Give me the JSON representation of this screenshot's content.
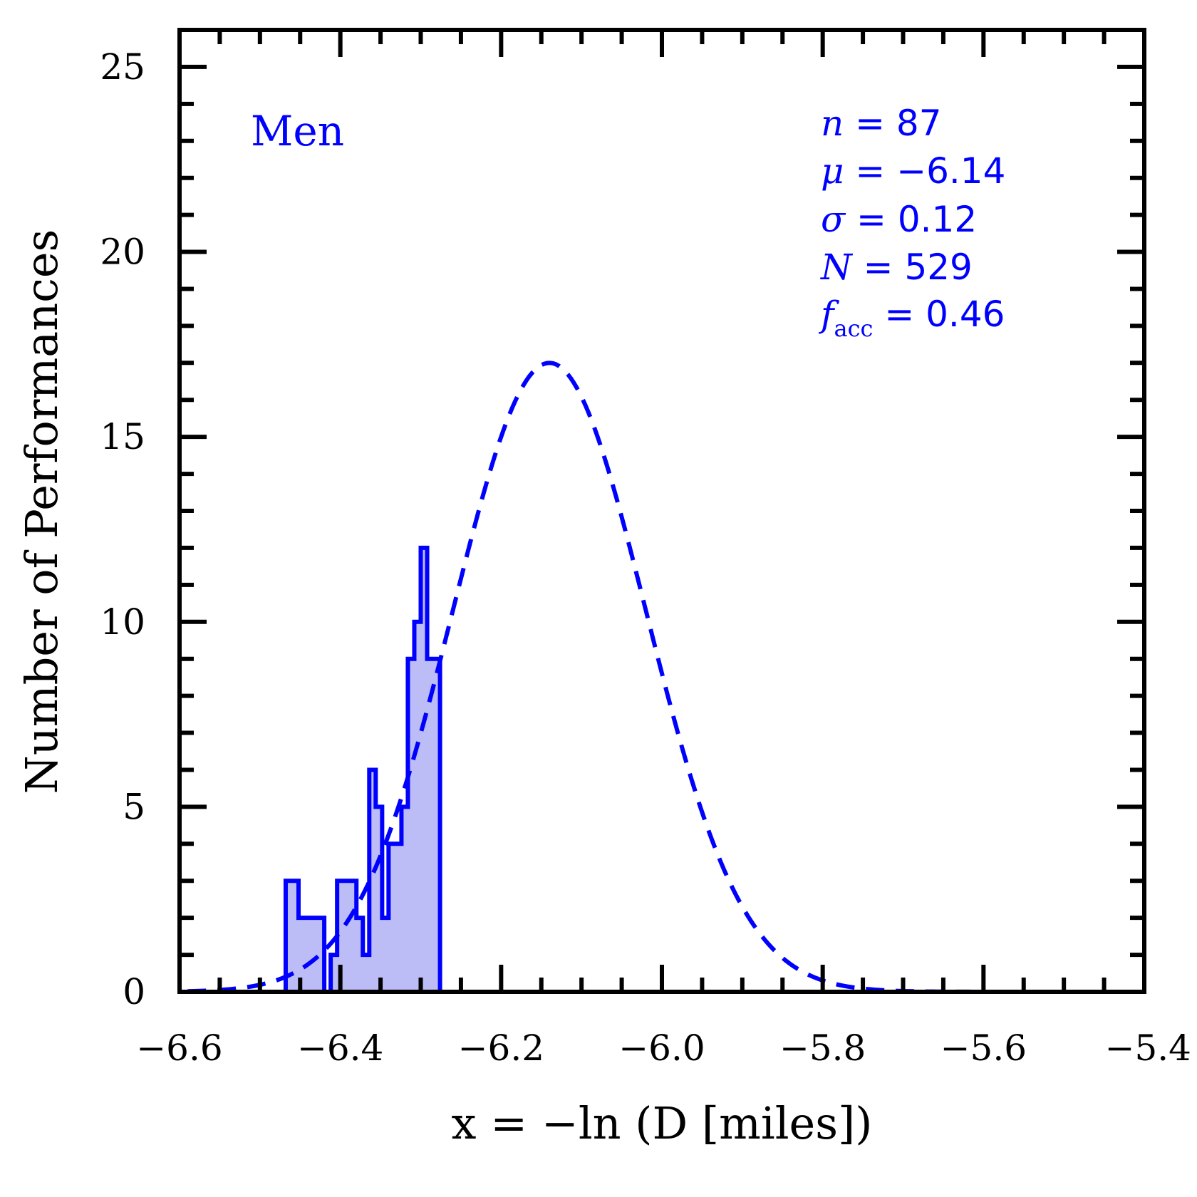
{
  "chart_data": {
    "type": "bar",
    "title": "",
    "xlabel": "x = −ln (D [miles])",
    "ylabel": "Number of Performances",
    "xlim": [
      -6.6,
      -5.4
    ],
    "ylim": [
      0,
      26
    ],
    "xticks": [
      -6.6,
      -6.4,
      -6.2,
      -6.0,
      -5.8,
      -5.6,
      -5.4
    ],
    "xtick_labels": [
      "−6.6",
      "−6.4",
      "−6.2",
      "−6.0",
      "−5.8",
      "−5.6",
      "−5.4"
    ],
    "yticks": [
      0,
      5,
      10,
      15,
      20,
      25
    ],
    "ytick_labels": [
      "0",
      "5",
      "10",
      "15",
      "20",
      "25"
    ],
    "panel_label": "Men",
    "stats": {
      "n": {
        "symbol": "n",
        "value": "87"
      },
      "mu": {
        "symbol": "μ",
        "value": "−6.14"
      },
      "sigma": {
        "symbol": "σ",
        "value": "0.12"
      },
      "N": {
        "symbol": "N",
        "value": "529"
      },
      "facc": {
        "symbol": "f",
        "subscript": "acc",
        "value": "0.46"
      }
    },
    "series": [
      {
        "name": "histogram",
        "kind": "step-histogram",
        "color": "#0000ff",
        "fill": "#bcbcf7",
        "bin_edges": [
          -6.468,
          -6.452,
          -6.436,
          -6.42,
          -6.412,
          -6.404,
          -6.388,
          -6.38,
          -6.372,
          -6.364,
          -6.356,
          -6.348,
          -6.34,
          -6.332,
          -6.324,
          -6.316,
          -6.308,
          -6.3,
          -6.292,
          -6.284,
          -6.276
        ],
        "counts": [
          3,
          2,
          2,
          0,
          1,
          3,
          3,
          2,
          1,
          6,
          5,
          2,
          4,
          4,
          5,
          9,
          10,
          12,
          9,
          9
        ]
      },
      {
        "name": "gaussian fit",
        "kind": "dashed-line",
        "color": "#0000ff",
        "mean": -6.14,
        "sigma": 0.12,
        "peak": 17.0
      }
    ]
  }
}
